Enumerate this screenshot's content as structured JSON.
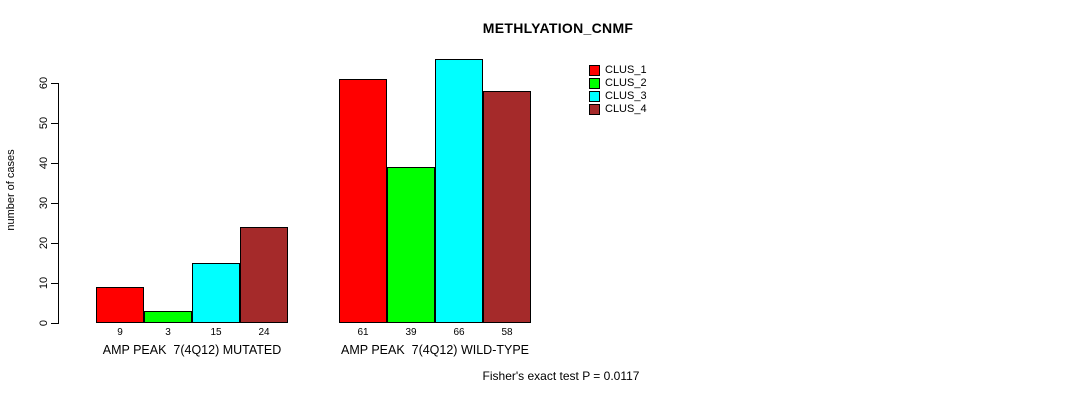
{
  "chart_data": {
    "type": "bar",
    "title": "METHLYATION_CNMF",
    "ylabel": "number of cases",
    "xlabel": "",
    "ylim": [
      0,
      60
    ],
    "yticks": [
      0,
      10,
      20,
      30,
      40,
      50,
      60
    ],
    "grid": false,
    "legend_position": "top-right",
    "categories": [
      "AMP PEAK  7(4Q12) MUTATED",
      "AMP PEAK  7(4Q12) WILD-TYPE"
    ],
    "series": [
      {
        "name": "CLUS_1",
        "color": "#FF0000",
        "values": [
          9,
          61
        ]
      },
      {
        "name": "CLUS_2",
        "color": "#00FF00",
        "values": [
          3,
          39
        ]
      },
      {
        "name": "CLUS_3",
        "color": "#00FFFF",
        "values": [
          15,
          66
        ]
      },
      {
        "name": "CLUS_4",
        "color": "#A52A2A",
        "values": [
          24,
          58
        ]
      }
    ],
    "bar_value_labels": true,
    "annotation": "Fisher's exact test P = 0.0117"
  }
}
